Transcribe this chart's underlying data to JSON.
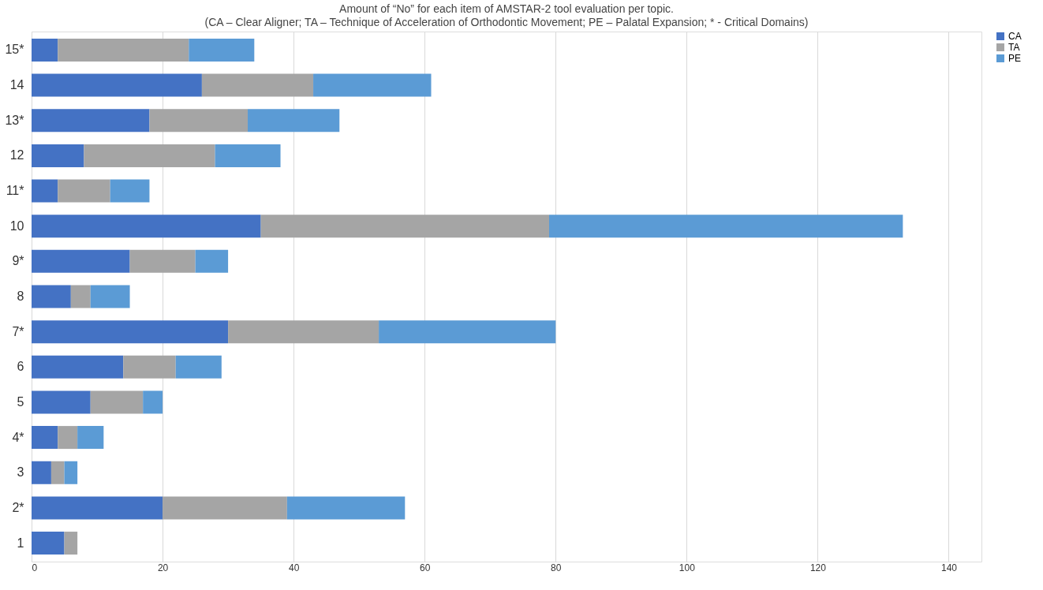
{
  "chart_data": {
    "type": "bar",
    "orientation": "horizontal",
    "stacked": true,
    "title": "Amount of “No” for each item of AMSTAR-2 tool evaluation per topic.",
    "subtitle": "(CA – Clear Aligner; TA – Technique of Acceleration of Orthodontic Movement; PE – Palatal Expansion; * - Critical Domains)",
    "categories": [
      "15*",
      "14",
      "13*",
      "12",
      "11*",
      "10",
      "9*",
      "8",
      "7*",
      "6",
      "5",
      "4*",
      "3",
      "2*",
      "1"
    ],
    "series": [
      {
        "name": "CA",
        "color": "#4472c4",
        "values": [
          4,
          26,
          18,
          8,
          4,
          35,
          15,
          6,
          30,
          14,
          9,
          4,
          3,
          20,
          5
        ]
      },
      {
        "name": "TA",
        "color": "#a5a5a5",
        "values": [
          20,
          17,
          15,
          20,
          8,
          44,
          10,
          3,
          23,
          8,
          8,
          3,
          2,
          19,
          2
        ]
      },
      {
        "name": "PE",
        "color": "#5b9bd5",
        "values": [
          10,
          18,
          14,
          10,
          6,
          54,
          5,
          6,
          27,
          7,
          3,
          4,
          2,
          18,
          0
        ]
      }
    ],
    "xlim": [
      0,
      145
    ],
    "xticks": [
      0,
      20,
      40,
      60,
      80,
      100,
      120,
      140
    ],
    "grid": "x",
    "legend": "right"
  }
}
